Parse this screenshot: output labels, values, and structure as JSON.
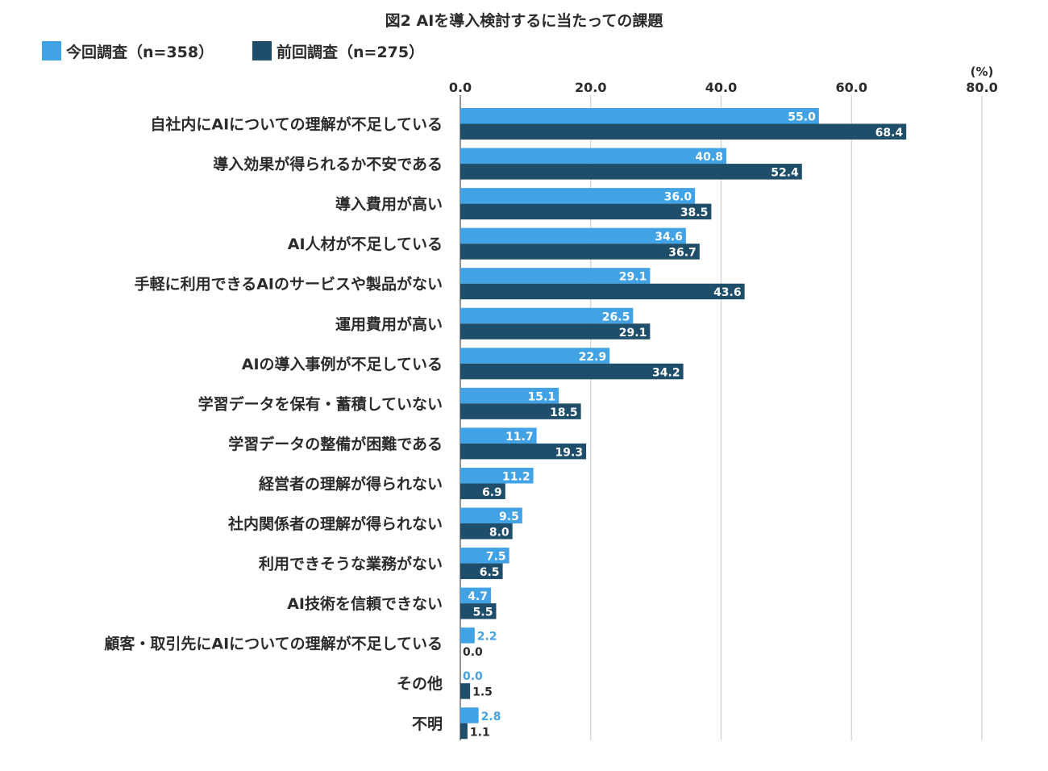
{
  "chart_data": {
    "type": "bar",
    "orientation": "horizontal",
    "title": "図2 AIを導入検討するに当たっての課題",
    "unit": "(%)",
    "xlim": [
      0,
      80
    ],
    "xticks": [
      "0.0",
      "20.0",
      "40.0",
      "60.0",
      "80.0"
    ],
    "grid": true,
    "legend_position": "top-left",
    "categories": [
      "自社内にAIについての理解が不足している",
      "導入効果が得られるか不安である",
      "導入費用が高い",
      "AI人材が不足している",
      "手軽に利用できるAIのサービスや製品がない",
      "運用費用が高い",
      "AIの導入事例が不足している",
      "学習データを保有・蓄積していない",
      "学習データの整備が困難である",
      "経営者の理解が得られない",
      "社内関係者の理解が得られない",
      "利用できそうな業務がない",
      "AI技術を信頼できない",
      "顧客・取引先にAIについての理解が不足している",
      "その他",
      "不明"
    ],
    "series": [
      {
        "name": "今回調査（n=358）",
        "color": "#41a2e6",
        "values": [
          55.0,
          40.8,
          36.0,
          34.6,
          29.1,
          26.5,
          22.9,
          15.1,
          11.7,
          11.2,
          9.5,
          7.5,
          4.7,
          2.2,
          0.0,
          2.8
        ],
        "labels": [
          "55.0",
          "40.8",
          "36.0",
          "34.6",
          "29.1",
          "26.5",
          "22.9",
          "15.1",
          "11.7",
          "11.2",
          "9.5",
          "7.5",
          "4.7",
          "2.2",
          "0.0",
          "2.8"
        ]
      },
      {
        "name": "前回調査（n=275）",
        "color": "#1f4e6b",
        "values": [
          68.4,
          52.4,
          38.5,
          36.7,
          43.6,
          29.1,
          34.2,
          18.5,
          19.3,
          6.9,
          8.0,
          6.5,
          5.5,
          0.0,
          1.5,
          1.1
        ],
        "labels": [
          "68.4",
          "52.4",
          "38.5",
          "36.7",
          "43.6",
          "29.1",
          "34.2",
          "18.5",
          "19.3",
          "6.9",
          "8.0",
          "6.5",
          "5.5",
          "0.0",
          "1.5",
          "1.1"
        ]
      }
    ]
  }
}
